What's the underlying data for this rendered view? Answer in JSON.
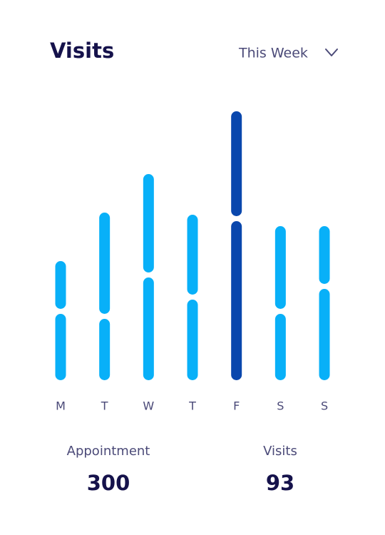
{
  "header": {
    "title": "Visits",
    "period": "This Week"
  },
  "chart_data": {
    "type": "bar",
    "stacked": true,
    "categories": [
      "M",
      "T",
      "W",
      "T",
      "F",
      "S",
      "S"
    ],
    "series": [
      {
        "color": "#08b0f8",
        "values": [
          93,
          86,
          144,
          113,
          223,
          93,
          128
        ]
      },
      {
        "color": "#08b0f8",
        "values": [
          67,
          142,
          138,
          112,
          147,
          116,
          81
        ]
      }
    ],
    "highlight_index": 4,
    "highlight_color": "#0a47ad"
  },
  "summary": [
    {
      "label": "Appointment",
      "value": 300
    },
    {
      "label": "Visits",
      "value": 93
    }
  ]
}
